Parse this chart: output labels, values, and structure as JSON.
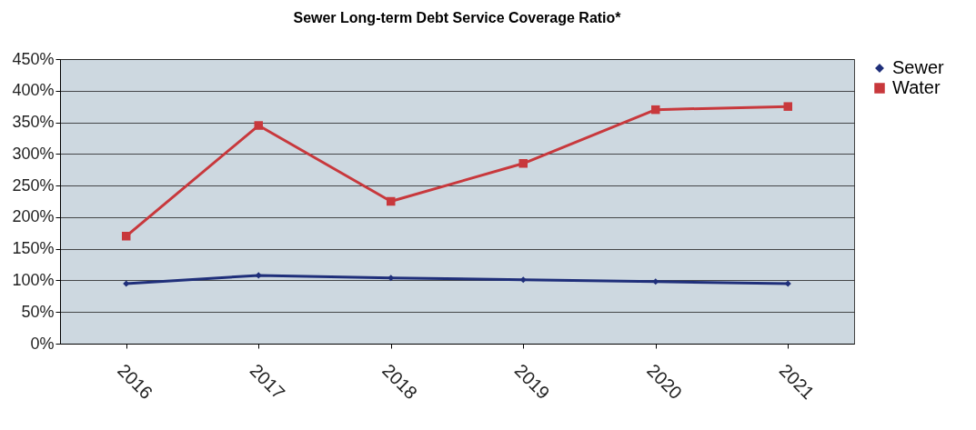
{
  "chart_data": {
    "type": "line",
    "title": "Sewer Long-term Debt Service Coverage Ratio*",
    "categories": [
      "2016",
      "2017",
      "2018",
      "2019",
      "2020",
      "2021"
    ],
    "series": [
      {
        "name": "Sewer",
        "color": "#1f2f7a",
        "marker": "diamond",
        "values": [
          95,
          108,
          104,
          101,
          98,
          95
        ]
      },
      {
        "name": "Water",
        "color": "#c8383c",
        "marker": "square",
        "values": [
          170,
          345,
          225,
          285,
          370,
          375
        ]
      }
    ],
    "ylim": [
      0,
      450
    ],
    "yticks": [
      {
        "value": 0,
        "label": "0%"
      },
      {
        "value": 50,
        "label": "50%"
      },
      {
        "value": 100,
        "label": "100%"
      },
      {
        "value": 150,
        "label": "150%"
      },
      {
        "value": 200,
        "label": "200%"
      },
      {
        "value": 250,
        "label": "250%"
      },
      {
        "value": 300,
        "label": "300%"
      },
      {
        "value": 350,
        "label": "350%"
      },
      {
        "value": 400,
        "label": "400%"
      },
      {
        "value": 450,
        "label": "450%"
      }
    ],
    "grid": "y",
    "legend": "right",
    "line_style": "solid"
  }
}
